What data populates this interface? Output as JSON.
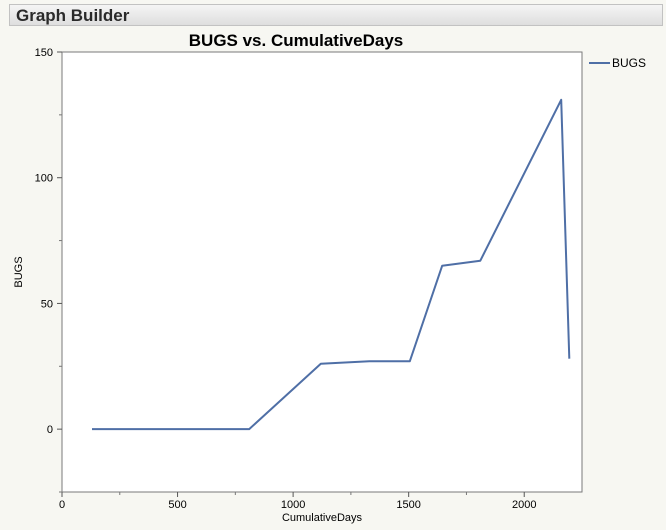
{
  "window": {
    "title": "Graph Builder"
  },
  "chart_data": {
    "type": "line",
    "title": "BUGS vs. CumulativeDays",
    "xlabel": "CumulativeDays",
    "ylabel": "BUGS",
    "xlim": [
      0,
      2250
    ],
    "ylim": [
      -25,
      150
    ],
    "xticks": [
      0,
      500,
      1000,
      1500,
      2000
    ],
    "yticks": [
      0,
      50,
      100,
      150
    ],
    "grid": false,
    "legend_position": "right",
    "series": [
      {
        "name": "BUGS",
        "color": "#4f6fa6",
        "x": [
          130,
          810,
          1120,
          1330,
          1505,
          1645,
          1810,
          2160,
          2195
        ],
        "y": [
          0,
          0,
          26,
          27,
          27,
          65,
          67,
          131,
          28
        ]
      }
    ]
  }
}
